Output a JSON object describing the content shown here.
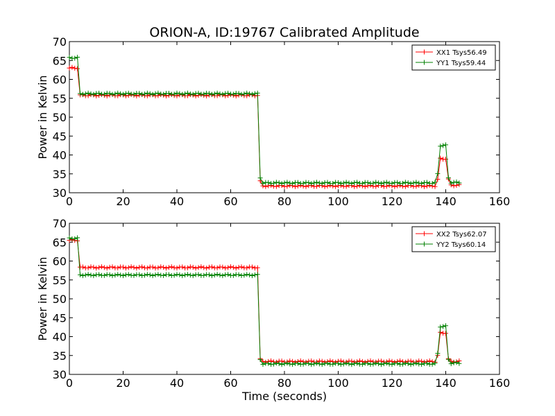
{
  "title": "ORION-A, ID:19767 Calibrated Amplitude",
  "chart_data": [
    {
      "type": "line",
      "xlabel": "",
      "ylabel": "Power in Kelvin",
      "xlim": [
        0,
        160
      ],
      "ylim": [
        30,
        70
      ],
      "xticks": [
        "0",
        "20",
        "40",
        "60",
        "80",
        "100",
        "120",
        "140",
        "160"
      ],
      "yticks": [
        "30",
        "35",
        "40",
        "45",
        "50",
        "55",
        "60",
        "65",
        "70"
      ],
      "legend_position": "top-right",
      "series": [
        {
          "name": "XX1 Tsys56.49",
          "color": "#ff0000",
          "points": [
            [
              0,
              63.0
            ],
            [
              3,
              63.0
            ],
            [
              4,
              55.8
            ],
            [
              70,
              55.8
            ],
            [
              71,
              33.0
            ],
            [
              72,
              31.8
            ],
            [
              136,
              31.8
            ],
            [
              137,
              33.5
            ],
            [
              138,
              39.0
            ],
            [
              140,
              39.0
            ],
            [
              141,
              33.5
            ],
            [
              142,
              32.0
            ],
            [
              145,
              32.0
            ]
          ]
        },
        {
          "name": "YY1 Tsys59.44",
          "color": "#008000",
          "points": [
            [
              0,
              65.7
            ],
            [
              3,
              65.7
            ],
            [
              4,
              56.2
            ],
            [
              70,
              56.2
            ],
            [
              71,
              34.0
            ],
            [
              72,
              32.6
            ],
            [
              136,
              32.6
            ],
            [
              137,
              35.0
            ],
            [
              138,
              42.5
            ],
            [
              140,
              42.5
            ],
            [
              141,
              34.0
            ],
            [
              142,
              32.7
            ],
            [
              145,
              32.7
            ]
          ]
        }
      ]
    },
    {
      "type": "line",
      "xlabel": "Time (seconds)",
      "ylabel": "Power in Kelvin",
      "xlim": [
        0,
        160
      ],
      "ylim": [
        30,
        70
      ],
      "xticks": [
        "0",
        "20",
        "40",
        "60",
        "80",
        "100",
        "120",
        "140",
        "160"
      ],
      "yticks": [
        "30",
        "35",
        "40",
        "45",
        "50",
        "55",
        "60",
        "65",
        "70"
      ],
      "legend_position": "top-right",
      "series": [
        {
          "name": "XX2 Tsys62.07",
          "color": "#ff0000",
          "points": [
            [
              0,
              65.5
            ],
            [
              3,
              65.5
            ],
            [
              4,
              58.3
            ],
            [
              70,
              58.3
            ],
            [
              71,
              34.0
            ],
            [
              72,
              33.4
            ],
            [
              136,
              33.4
            ],
            [
              137,
              35.0
            ],
            [
              138,
              41.0
            ],
            [
              140,
              41.0
            ],
            [
              141,
              34.0
            ],
            [
              142,
              33.4
            ],
            [
              145,
              33.4
            ]
          ]
        },
        {
          "name": "YY2 Tsys60.14",
          "color": "#008000",
          "points": [
            [
              0,
              66.0
            ],
            [
              3,
              66.0
            ],
            [
              4,
              56.3
            ],
            [
              70,
              56.3
            ],
            [
              71,
              34.0
            ],
            [
              72,
              32.8
            ],
            [
              136,
              32.8
            ],
            [
              137,
              35.5
            ],
            [
              138,
              42.7
            ],
            [
              140,
              42.7
            ],
            [
              141,
              34.0
            ],
            [
              142,
              33.0
            ],
            [
              145,
              33.0
            ]
          ]
        }
      ]
    }
  ]
}
